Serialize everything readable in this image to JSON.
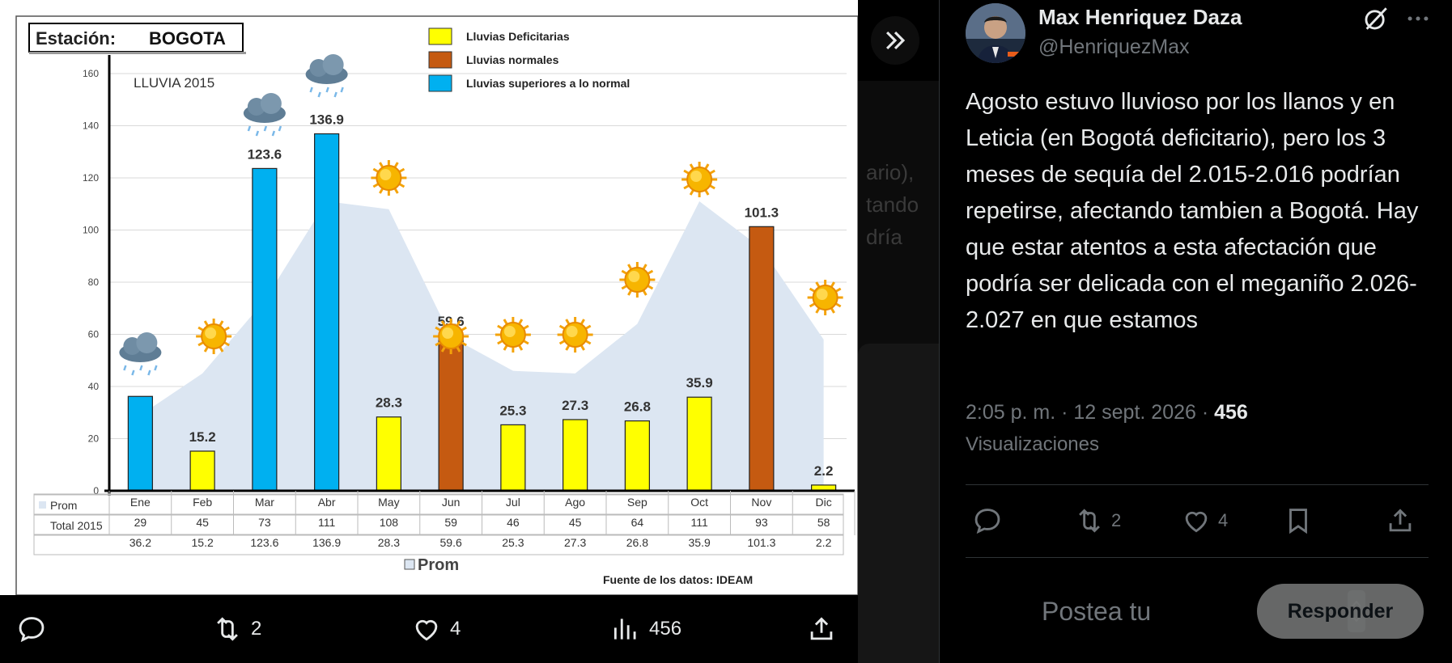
{
  "chart": {
    "station_label": "Estación:",
    "station_name": "BOGOTA",
    "subtitle": "LLUVIA 2015",
    "legend": [
      {
        "label": "Lluvias Deficitarias",
        "color": "#ffff00"
      },
      {
        "label": "Lluvias normales",
        "color": "#c55a11"
      },
      {
        "label": "Lluvias superiores a lo normal",
        "color": "#00b0f0"
      }
    ],
    "prom_legend": "Prom",
    "table_rows": [
      "Prom",
      "Total 2015"
    ],
    "source": "Fuente de los datos: IDEAM",
    "colors": {
      "deficit": "#ffff00",
      "normal": "#c55a11",
      "above": "#00b0f0",
      "prom_area": "#dce6f2"
    },
    "weather_icons": [
      "rain-cloud-icon",
      "sun-icon",
      "rain-cloud-icon",
      "rain-cloud-icon",
      "sun-icon",
      "sun-icon",
      "sun-icon",
      "sun-icon",
      "sun-icon",
      "sun-icon",
      "sun-icon",
      "sun-icon"
    ]
  },
  "chart_data": {
    "type": "bar",
    "categories": [
      "Ene",
      "Feb",
      "Mar",
      "Abr",
      "May",
      "Jun",
      "Jul",
      "Ago",
      "Sep",
      "Oct",
      "Nov",
      "Dic"
    ],
    "series": [
      {
        "name": "Total 2015",
        "values": [
          36.2,
          15.2,
          123.6,
          136.9,
          28.3,
          59.6,
          25.3,
          27.3,
          26.8,
          35.9,
          101.3,
          2.2
        ],
        "categories_class": [
          "above",
          "deficit",
          "above",
          "above",
          "deficit",
          "normal",
          "deficit",
          "deficit",
          "deficit",
          "deficit",
          "normal",
          "deficit"
        ]
      },
      {
        "name": "Prom",
        "type": "area",
        "values": [
          29,
          45,
          73,
          111,
          108,
          59,
          46,
          45,
          64,
          111,
          93,
          58
        ]
      }
    ],
    "data_labels": [
      "",
      "15.2",
      "123.6",
      "136.9",
      "28.3",
      "59.6",
      "25.3",
      "27.3",
      "26.8",
      "35.9",
      "101.3",
      "2.2"
    ],
    "y_ticks": [
      0,
      20,
      40,
      60,
      80,
      100,
      120,
      140,
      160
    ],
    "ylim": [
      0,
      160
    ]
  },
  "viewer": {
    "actions": [
      {
        "icon": "reply-icon",
        "count": ""
      },
      {
        "icon": "repost-icon",
        "count": "2"
      },
      {
        "icon": "like-icon",
        "count": "4"
      },
      {
        "icon": "views-icon",
        "count": "456"
      },
      {
        "icon": "share-icon",
        "count": ""
      }
    ],
    "ghost_text": [
      "ario),",
      "tando",
      "dría"
    ]
  },
  "tweet": {
    "display_name": "Max Henriquez Daza",
    "handle": "@HenriquezMax",
    "text": "Agosto estuvo lluvioso por los llanos y en Leticia (en Bogotá deficitario), pero los 3 meses de sequía del 2.015-2.016 podrían repetirse, afectando tambien a Bogotá. Hay que estar atentos a esta afectación que podría ser delicada con el meganiño 2.026-2.027 en que estamos",
    "time": "2:05 p. m. · 12 sept. 2026 · ",
    "views": "456",
    "views_label": "Visualizaciones",
    "actions": {
      "reposts": "2",
      "likes": "4"
    },
    "reply_placeholder": "Postea tu",
    "reply_button": "Responder"
  }
}
